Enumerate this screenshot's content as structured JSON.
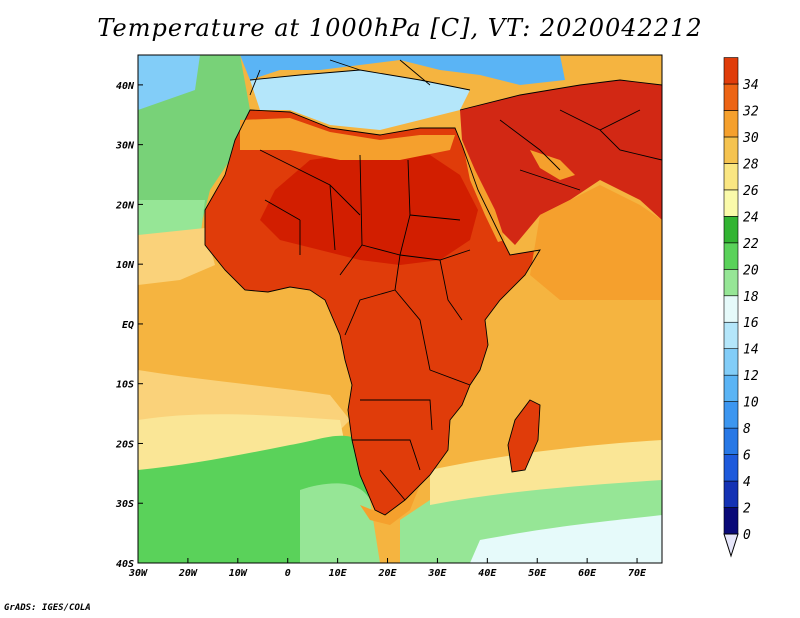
{
  "title": "Temperature at 1000hPa [C], VT: 2020042212",
  "footer": "GrADS: IGES/COLA",
  "axes": {
    "lon_range": [
      -30,
      75
    ],
    "lat_range": [
      -40,
      45
    ],
    "x_ticks": [
      {
        "value": -30,
        "label": "30W"
      },
      {
        "value": -20,
        "label": "20W"
      },
      {
        "value": -10,
        "label": "10W"
      },
      {
        "value": 0,
        "label": "0"
      },
      {
        "value": 10,
        "label": "10E"
      },
      {
        "value": 20,
        "label": "20E"
      },
      {
        "value": 30,
        "label": "30E"
      },
      {
        "value": 40,
        "label": "40E"
      },
      {
        "value": 50,
        "label": "50E"
      },
      {
        "value": 60,
        "label": "60E"
      },
      {
        "value": 70,
        "label": "70E"
      }
    ],
    "y_ticks": [
      {
        "value": 40,
        "label": "40N"
      },
      {
        "value": 30,
        "label": "30N"
      },
      {
        "value": 20,
        "label": "20N"
      },
      {
        "value": 10,
        "label": "10N"
      },
      {
        "value": 0,
        "label": "EQ"
      },
      {
        "value": -10,
        "label": "10S"
      },
      {
        "value": -20,
        "label": "20S"
      },
      {
        "value": -30,
        "label": "30S"
      },
      {
        "value": -40,
        "label": "40S"
      }
    ]
  },
  "colorbar": {
    "levels": [
      "0",
      "2",
      "4",
      "6",
      "8",
      "10",
      "12",
      "14",
      "16",
      "18",
      "20",
      "22",
      "24",
      "26",
      "28",
      "30",
      "32",
      "34"
    ],
    "colors": [
      "#0a0a78",
      "#1432b4",
      "#1e5adc",
      "#2878e6",
      "#3c96f0",
      "#5ab4f5",
      "#82cdf8",
      "#b4e6fa",
      "#e6fafa",
      "#96e696",
      "#5ad25a",
      "#32b432",
      "#fafaaa",
      "#fae682",
      "#f5c350",
      "#f5a02d",
      "#ed6414",
      "#e03c0a",
      "#d21e00"
    ],
    "under_color": "#e6e6fa"
  },
  "regions": {
    "ocean_warm": "#f5b440",
    "ocean_mild": "#fad27a",
    "ocean_cool": "#fae696",
    "land_hot": "#e03c0a",
    "land_very_hot": "#d22814",
    "med_sea": "#b4e6fa",
    "europe_cool": "#5ab4f5",
    "atlantic_green": "#78d278",
    "south_atlantic_green": "#5ad25a"
  }
}
